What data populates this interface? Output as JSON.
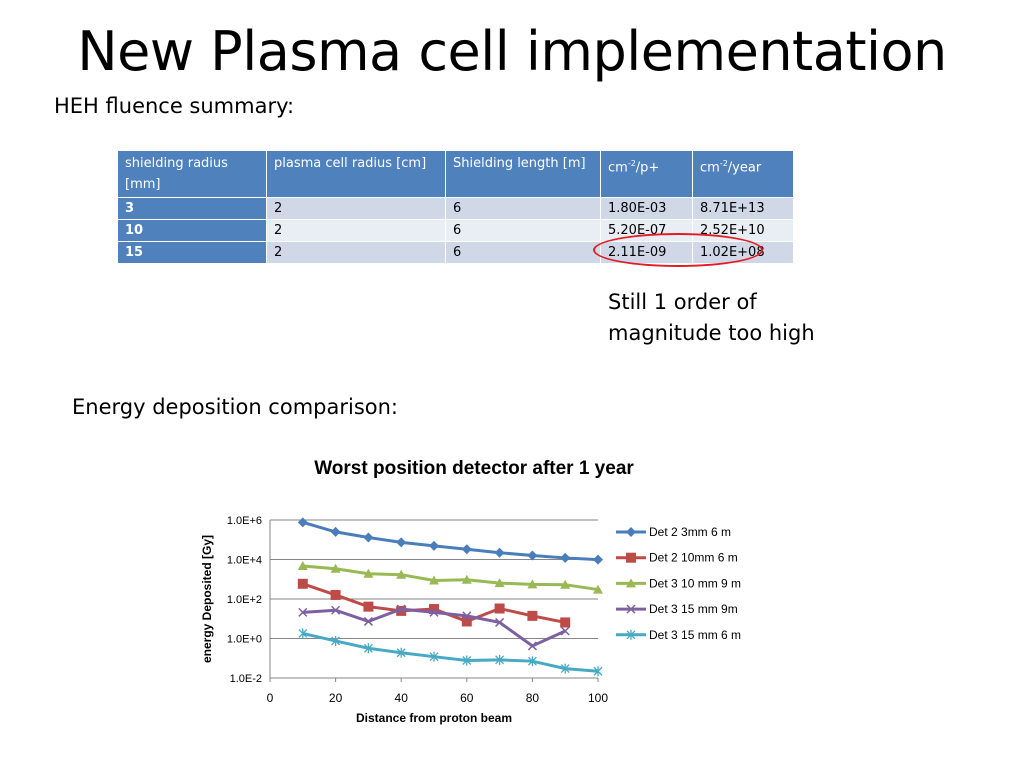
{
  "slide": {
    "title": "New Plasma cell implementation",
    "subtitle_heh": "HEH fluence summary:",
    "subtitle_energy": "Energy deposition comparison:",
    "note": "Still 1 order of magnitude too high"
  },
  "table": {
    "headers": [
      {
        "text": "shielding radius [mm]"
      },
      {
        "text": "plasma cell radius [cm]"
      },
      {
        "text": "Shielding length [m]"
      },
      {
        "base": "cm",
        "sup": "-2",
        "rest": "/p+"
      },
      {
        "base": "cm",
        "sup": "-2",
        "rest": "/year"
      }
    ],
    "rows": [
      [
        "3",
        "2",
        "6",
        "1.80E-03",
        "8.71E+13"
      ],
      [
        "10",
        "2",
        "6",
        "5.20E-07",
        "2.52E+10"
      ],
      [
        "15",
        "2",
        "6",
        "2.11E-09",
        "1.02E+08"
      ]
    ],
    "highlight_color": "#e31b23"
  },
  "chart_data": {
    "type": "line",
    "title": "Worst position detector after 1 year",
    "xlabel": "Distance from proton beam",
    "ylabel": "energy Deposited [Gy]",
    "xlim": [
      0,
      100
    ],
    "xticks": [
      "0",
      "20",
      "40",
      "60",
      "80",
      "100"
    ],
    "ylim": [
      0.01,
      1000000
    ],
    "yscale": "log",
    "yticks": [
      "1.0E-2",
      "1.0E+0",
      "1.0E+2",
      "1.0E+4",
      "1.0E+6"
    ],
    "grid": "horizontal",
    "legend": "right",
    "series": [
      {
        "name": "Det 2 3mm 6 m",
        "color": "#4a7ebb",
        "marker": "diamond",
        "x": [
          10,
          20,
          30,
          40,
          50,
          60,
          70,
          80,
          90,
          100
        ],
        "values": [
          760000,
          250000,
          130000,
          74000,
          49000,
          33000,
          22000,
          16000,
          12000,
          9800
        ]
      },
      {
        "name": "Det 2 10mm 6 m",
        "color": "#be4b48",
        "marker": "square",
        "x": [
          10,
          20,
          30,
          40,
          50,
          60,
          70,
          80,
          90
        ],
        "values": [
          590,
          160,
          41,
          25,
          31,
          7.3,
          33,
          14,
          6.5
        ]
      },
      {
        "name": "Det 3 10 mm 9 m",
        "color": "#98b954",
        "marker": "triangle",
        "x": [
          10,
          20,
          30,
          40,
          50,
          60,
          70,
          80,
          90,
          100
        ],
        "values": [
          4700,
          3400,
          1900,
          1700,
          870,
          940,
          640,
          550,
          530,
          300
        ]
      },
      {
        "name": "Det 3 15 mm 9m",
        "color": "#7d60a0",
        "marker": "x",
        "x": [
          10,
          20,
          30,
          40,
          50,
          60,
          70,
          80,
          90
        ],
        "values": [
          21,
          27,
          7.3,
          31,
          21,
          14,
          6.5,
          0.42,
          2.4
        ]
      },
      {
        "name": "Det 3 15 mm 6 m",
        "color": "#46aac5",
        "marker": "star",
        "x": [
          10,
          20,
          30,
          40,
          50,
          60,
          70,
          80,
          90,
          100
        ],
        "values": [
          1.8,
          0.75,
          0.32,
          0.19,
          0.12,
          0.077,
          0.083,
          0.071,
          0.03,
          0.022
        ]
      }
    ]
  }
}
